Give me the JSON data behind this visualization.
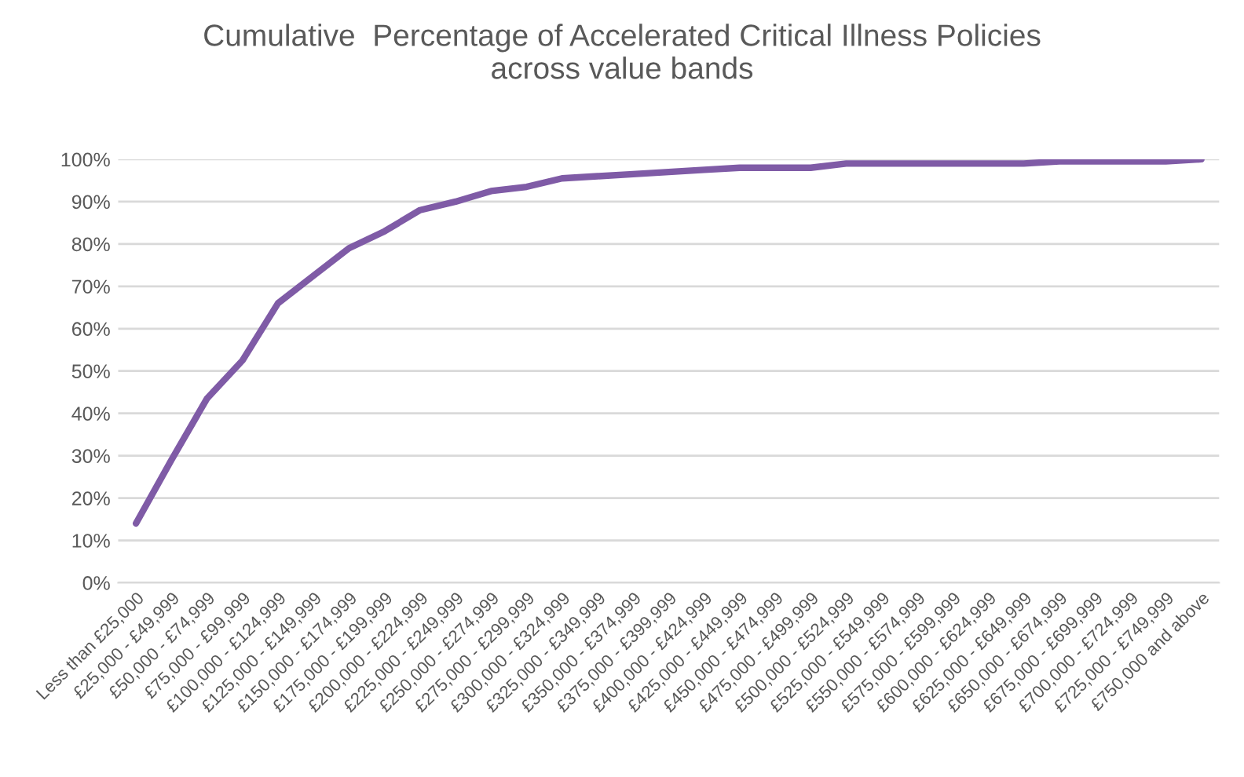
{
  "chart_data": {
    "type": "line",
    "title": "Cumulative  Percentage of Accelerated Critical Illness Policies\nacross value bands",
    "categories": [
      "Less than £25,000",
      "£25,000 - £49,999",
      "£50,000 - £74,999",
      "£75,000 - £99,999",
      "£100,000 - £124,999",
      "£125,000 - £149,999",
      "£150,000 - £174,999",
      "£175,000 - £199,999",
      "£200,000 - £224,999",
      "£225,000 - £249,999",
      "£250,000 - £274,999",
      "£275,000 - £299,999",
      "£300,000 - £324,999",
      "£325,000 - £349,999",
      "£350,000 - £374,999",
      "£375,000 - £399,999",
      "£400,000 - £424,999",
      "£425,000 - £449,999",
      "£450,000 - £474,999",
      "£475,000 - £499,999",
      "£500,000 - £524,999",
      "£525,000 - £549,999",
      "£550,000 - £574,999",
      "£575,000 - £599,999",
      "£600,000 - £624,999",
      "£625,000 - £649,999",
      "£650,000 - £674,999",
      "£675,000 - £699,999",
      "£700,000 - £724,999",
      "£725,000 - £749,999",
      "£750,000 and above"
    ],
    "series": [
      {
        "color": "#7f5ba6",
        "values": [
          14,
          29,
          43.5,
          52.5,
          66,
          72.5,
          79,
          83,
          88,
          90,
          92.5,
          93.5,
          95.5,
          96,
          96.5,
          97,
          97.5,
          98,
          98,
          98,
          99,
          99,
          99,
          99,
          99,
          99,
          99.5,
          99.5,
          99.5,
          99.5,
          100
        ]
      }
    ],
    "ylim": [
      0,
      100
    ],
    "yticks": [
      {
        "value": 0,
        "label": "0%"
      },
      {
        "value": 10,
        "label": "10%"
      },
      {
        "value": 20,
        "label": "20%"
      },
      {
        "value": 30,
        "label": "30%"
      },
      {
        "value": 40,
        "label": "40%"
      },
      {
        "value": 50,
        "label": "50%"
      },
      {
        "value": 60,
        "label": "60%"
      },
      {
        "value": 70,
        "label": "70%"
      },
      {
        "value": 80,
        "label": "80%"
      },
      {
        "value": 90,
        "label": "90%"
      },
      {
        "value": 100,
        "label": "100%"
      }
    ],
    "grid": "y",
    "marker": "none",
    "line_style": "solid"
  }
}
